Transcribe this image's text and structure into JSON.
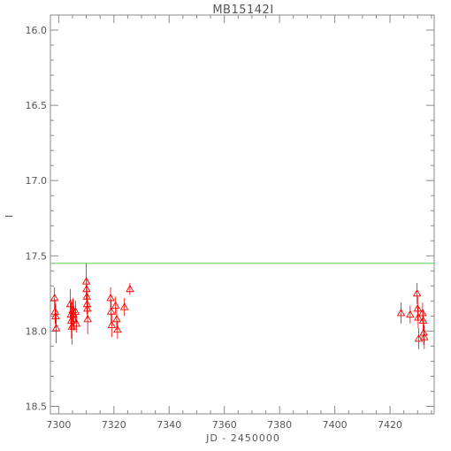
{
  "chart_data": {
    "type": "scatter",
    "title": "MB15142I",
    "xlabel": "JD - 2450000",
    "ylabel": "I",
    "xlim": [
      7297,
      7436
    ],
    "ylim": [
      18.55,
      15.9
    ],
    "y_inverted": true,
    "x_ticks": [
      7300,
      7320,
      7340,
      7360,
      7380,
      7400,
      7420
    ],
    "x_tick_labels": [
      "7300",
      "7320",
      "7340",
      "7360",
      "7380",
      "7400",
      "7420"
    ],
    "y_ticks": [
      16.0,
      16.5,
      17.0,
      17.5,
      18.0,
      18.5
    ],
    "y_tick_labels": [
      "16.0",
      "16.5",
      "17.0",
      "17.5",
      "18.0",
      "18.5"
    ],
    "grid": false,
    "reference_line": {
      "y": 17.55,
      "color": "#66cc66"
    },
    "series": [
      {
        "marker": "triangle",
        "color": "#ff0000",
        "points": [
          {
            "x": 7298.5,
            "y": 17.78,
            "err": 0.07
          },
          {
            "x": 7298.7,
            "y": 17.87,
            "err": 0.08
          },
          {
            "x": 7298.9,
            "y": 17.9,
            "err": 0.08
          },
          {
            "x": 7299.1,
            "y": 17.98,
            "err": 0.1
          },
          {
            "x": 7304.2,
            "y": 17.82,
            "err": 0.1
          },
          {
            "x": 7304.4,
            "y": 17.89,
            "err": 0.1
          },
          {
            "x": 7304.6,
            "y": 17.93,
            "err": 0.12
          },
          {
            "x": 7304.8,
            "y": 17.97,
            "err": 0.12
          },
          {
            "x": 7305.1,
            "y": 17.86,
            "err": 0.08
          },
          {
            "x": 7305.3,
            "y": 17.89,
            "err": 0.1
          },
          {
            "x": 7305.6,
            "y": 17.92,
            "err": 0.08
          },
          {
            "x": 7306.1,
            "y": 17.87,
            "err": 0.07
          },
          {
            "x": 7306.4,
            "y": 17.95,
            "err": 0.06
          },
          {
            "x": 7310.0,
            "y": 17.67,
            "err": 0.12
          },
          {
            "x": 7310.1,
            "y": 17.72,
            "err": 0.08
          },
          {
            "x": 7310.2,
            "y": 17.77,
            "err": 0.08
          },
          {
            "x": 7310.3,
            "y": 17.82,
            "err": 0.07
          },
          {
            "x": 7310.4,
            "y": 17.85,
            "err": 0.07
          },
          {
            "x": 7310.5,
            "y": 17.92,
            "err": 0.1
          },
          {
            "x": 7318.8,
            "y": 17.78,
            "err": 0.07
          },
          {
            "x": 7319.0,
            "y": 17.87,
            "err": 0.08
          },
          {
            "x": 7319.2,
            "y": 17.96,
            "err": 0.08
          },
          {
            "x": 7320.6,
            "y": 17.83,
            "err": 0.06
          },
          {
            "x": 7321.0,
            "y": 17.92,
            "err": 0.07
          },
          {
            "x": 7321.3,
            "y": 17.99,
            "err": 0.06
          },
          {
            "x": 7323.8,
            "y": 17.84,
            "err": 0.06
          },
          {
            "x": 7325.8,
            "y": 17.72,
            "err": 0.04
          },
          {
            "x": 7424.0,
            "y": 17.88,
            "err": 0.07
          },
          {
            "x": 7427.3,
            "y": 17.89,
            "err": 0.06
          },
          {
            "x": 7429.8,
            "y": 17.75,
            "err": 0.07
          },
          {
            "x": 7430.0,
            "y": 17.85,
            "err": 0.08
          },
          {
            "x": 7430.2,
            "y": 17.91,
            "err": 0.07
          },
          {
            "x": 7430.4,
            "y": 18.05,
            "err": 0.07
          },
          {
            "x": 7431.8,
            "y": 17.88,
            "err": 0.07
          },
          {
            "x": 7432.0,
            "y": 17.93,
            "err": 0.07
          },
          {
            "x": 7432.2,
            "y": 18.01,
            "err": 0.08
          },
          {
            "x": 7432.4,
            "y": 18.04,
            "err": 0.08
          }
        ]
      }
    ]
  }
}
